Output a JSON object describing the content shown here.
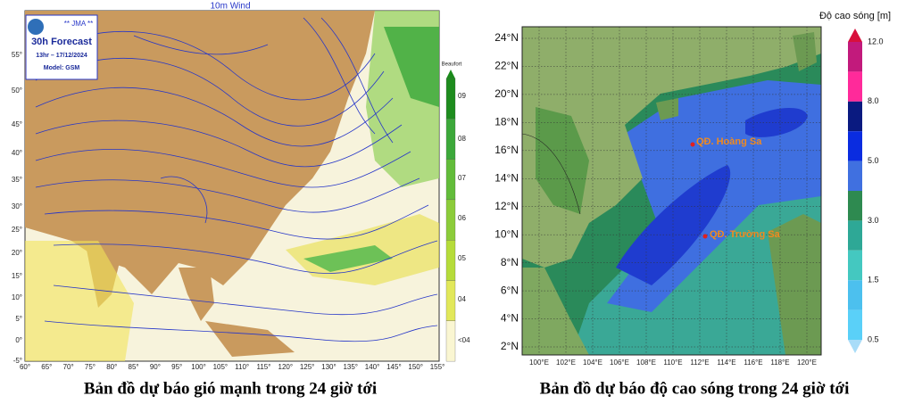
{
  "left_map": {
    "title": "10m Wind",
    "logo": {
      "agency": "** JMA **",
      "forecast": "30h Forecast",
      "time": "13hr – 17/12/2024",
      "model": "Model: GSM"
    },
    "colorbar_title": "Beaufort",
    "colorbar_labels": [
      "09",
      "08",
      "07",
      "06",
      "05",
      "04",
      "<04"
    ],
    "lat_labels": [
      "55°",
      "50°",
      "45°",
      "40°",
      "35°",
      "30°",
      "25°",
      "20°",
      "15°",
      "10°",
      "5°",
      "0°",
      "-5°"
    ],
    "lon_labels": [
      "60°",
      "65°",
      "70°",
      "75°",
      "80°",
      "85°",
      "90°",
      "95°",
      "100°",
      "105°",
      "110°",
      "115°",
      "120°",
      "125°",
      "130°",
      "135°",
      "140°",
      "145°",
      "150°",
      "155°"
    ],
    "caption": "Bản đồ dự báo gió mạnh trong 24 giờ tới"
  },
  "right_map": {
    "colorbar_title": "Độ cao sóng [m]",
    "colorbar_labels": [
      "12.0",
      "8.0",
      "5.0",
      "3.0",
      "1.5",
      "0.5"
    ],
    "lat_labels": [
      "24°N",
      "22°N",
      "20°N",
      "18°N",
      "16°N",
      "14°N",
      "12°N",
      "10°N",
      "8°N",
      "6°N",
      "4°N",
      "2°N"
    ],
    "lon_labels": [
      "100°E",
      "102°E",
      "104°E",
      "106°E",
      "108°E",
      "110°E",
      "112°E",
      "114°E",
      "116°E",
      "118°E",
      "120°E"
    ],
    "places": [
      "QĐ. Hoàng Sa",
      "QĐ. Trường Sa"
    ],
    "caption": "Bản đồ dự báo độ cao sóng trong 24 giờ tới"
  }
}
